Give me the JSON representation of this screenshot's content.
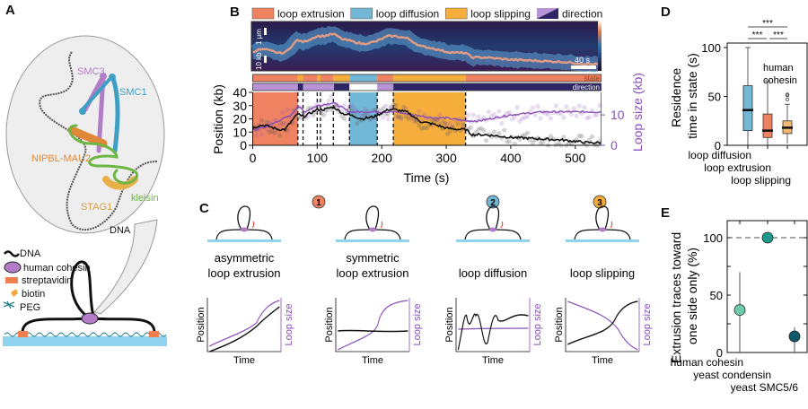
{
  "panels": {
    "a": "A",
    "b": "B",
    "c": "C",
    "d": "D",
    "e": "E"
  },
  "panel_a": {
    "labels": {
      "smc3": "SMC3",
      "smc1": "SMC1",
      "nipbl": "NIPBL-MAU2",
      "stag1": "STAG1",
      "kleisin": "kleisin",
      "dna": "DNA"
    },
    "legend": [
      "DNA",
      "human cohesin",
      "streptavidin",
      "biotin",
      "PEG"
    ],
    "colors": {
      "smc3": "#b27cc8",
      "smc1": "#3f9fc2",
      "nipbl": "#e0883a",
      "stag1": "#e9b04a",
      "kleisin": "#6db544",
      "surface": "#8fd3ef",
      "streptavidin": "#f07f50",
      "biotin": "#f6a63a",
      "peg": "#2a7d8c"
    }
  },
  "legend_b": [
    "loop extrusion",
    "loop diffusion",
    "loop slipping",
    "direction"
  ],
  "colors": {
    "extrusion": "#ef8361",
    "diffusion": "#72b8d6",
    "slipping": "#f5ad3c",
    "direction_light": "#b893d6",
    "direction_dark": "#2d2566",
    "position": "#111111",
    "loop_size": "#8a4fb8"
  },
  "kymograph": {
    "scale_distance": "1 μm",
    "scale_dna": "10 kb",
    "scale_time": "40 s"
  },
  "bars": {
    "state_label": "state",
    "direction_label": "direction"
  },
  "panel_c": {
    "badges": [
      "1",
      "2",
      "3"
    ],
    "titles": [
      [
        "asymmetric",
        "loop extrusion"
      ],
      [
        "symmetric",
        "loop extrusion"
      ],
      [
        "",
        "loop diffusion"
      ],
      [
        "",
        "loop slipping"
      ]
    ],
    "xlabel": "Time",
    "ylabel": "Position",
    "y2label": "Loop size"
  },
  "chart_data": [
    {
      "panel": "B",
      "type": "line",
      "xlabel": "Time (s)",
      "ylabel": "Position (kb)",
      "y2label": "Loop size (kb)",
      "xlim": [
        0,
        540
      ],
      "ylim": [
        0,
        40
      ],
      "y2lim": [
        0,
        17.4
      ],
      "xticks": [
        0,
        100,
        200,
        300,
        400,
        500
      ],
      "yticks": [
        0,
        10,
        20,
        30,
        40
      ],
      "y2ticks": [
        0,
        10
      ],
      "states": [
        {
          "state": "extrusion",
          "start": 0,
          "end": 70
        },
        {
          "state": "slipping",
          "start": 70,
          "end": 78
        },
        {
          "state": "extrusion",
          "start": 78,
          "end": 100
        },
        {
          "state": "slipping",
          "start": 100,
          "end": 105
        },
        {
          "state": "extrusion",
          "start": 105,
          "end": 125
        },
        {
          "state": "slipping",
          "start": 125,
          "end": 150
        },
        {
          "state": "diffusion",
          "start": 150,
          "end": 193
        },
        {
          "state": "extrusion",
          "start": 193,
          "end": 218
        },
        {
          "state": "slipping",
          "start": 218,
          "end": 330
        },
        {
          "state": "extrusion",
          "start": 330,
          "end": 540
        }
      ],
      "direction": [
        {
          "dir": "light",
          "start": 0,
          "end": 70
        },
        {
          "dir": "dark",
          "start": 70,
          "end": 78
        },
        {
          "dir": "light",
          "start": 78,
          "end": 126
        },
        {
          "dir": "dark",
          "start": 126,
          "end": 150
        },
        {
          "dir": "none",
          "start": 150,
          "end": 193
        },
        {
          "dir": "light",
          "start": 193,
          "end": 218
        },
        {
          "dir": "dark",
          "start": 218,
          "end": 540
        }
      ],
      "shaded": [
        {
          "state": "extrusion",
          "start": 0,
          "end": 70
        },
        {
          "state": "diffusion",
          "start": 150,
          "end": 193
        },
        {
          "state": "slipping",
          "start": 218,
          "end": 330
        }
      ],
      "boundaries": [
        70,
        78,
        100,
        105,
        125,
        150,
        193,
        218,
        330
      ],
      "series": [
        {
          "axis": "left",
          "x": [
            0,
            10,
            20,
            40,
            50,
            60,
            70,
            75,
            80,
            100,
            110,
            125,
            140,
            150,
            170,
            190,
            210,
            220,
            240,
            260,
            280,
            300,
            320,
            330,
            340,
            360,
            400,
            440,
            480,
            520,
            540
          ],
          "y": [
            13,
            15,
            15,
            12,
            12,
            18,
            24,
            22,
            22,
            27,
            27,
            29,
            24,
            23,
            20,
            22,
            27,
            27,
            25,
            18,
            16,
            13,
            12,
            12,
            8,
            8,
            6,
            5,
            4,
            2,
            2
          ]
        },
        {
          "axis": "right",
          "x": [
            0,
            20,
            40,
            60,
            70,
            80,
            100,
            125,
            150,
            200,
            220,
            250,
            280,
            300,
            330,
            350,
            400,
            450,
            500,
            540
          ],
          "y": [
            5,
            6,
            8,
            10,
            13,
            11,
            13,
            14,
            11,
            11,
            11,
            10,
            9,
            9,
            8,
            8,
            10,
            11,
            11,
            11
          ]
        }
      ]
    },
    {
      "panel": "D",
      "type": "box",
      "title": "human cohesin",
      "ylabel": "Residence time in state (s)",
      "ylim": [
        0,
        100
      ],
      "yticks": [
        0,
        50,
        100
      ],
      "categories": [
        "loop diffusion",
        "loop extrusion",
        "loop slipping"
      ],
      "boxes": [
        {
          "min": 0,
          "q1": 15,
          "median": 36,
          "q3": 61,
          "max": 100,
          "outliers": []
        },
        {
          "min": 0,
          "q1": 8,
          "median": 15,
          "q3": 32,
          "max": 66,
          "outliers": []
        },
        {
          "min": 2,
          "q1": 12,
          "median": 18,
          "q3": 25,
          "max": 42,
          "outliers": [
            47,
            51,
            52
          ]
        }
      ],
      "significance": [
        {
          "pair": [
            0,
            2
          ],
          "label": "***"
        },
        {
          "pair": [
            0,
            1
          ],
          "label": "***"
        },
        {
          "pair": [
            1,
            2
          ],
          "label": "***"
        }
      ]
    },
    {
      "panel": "E",
      "type": "scatter",
      "ylabel": "Extrusion traces toward one side only (%)",
      "ylim": [
        0,
        115
      ],
      "yticks": [
        0,
        50,
        100
      ],
      "reference_line": 100,
      "categories": [
        "human cohesin",
        "yeast condensin",
        "yeast SMC5/6"
      ],
      "values": [
        37,
        100,
        14
      ],
      "error_low": [
        0,
        100,
        0
      ],
      "error_high": [
        70,
        100,
        22
      ],
      "point_colors": [
        "#6fcdac",
        "#1f9a8a",
        "#0f5a6a"
      ]
    }
  ]
}
